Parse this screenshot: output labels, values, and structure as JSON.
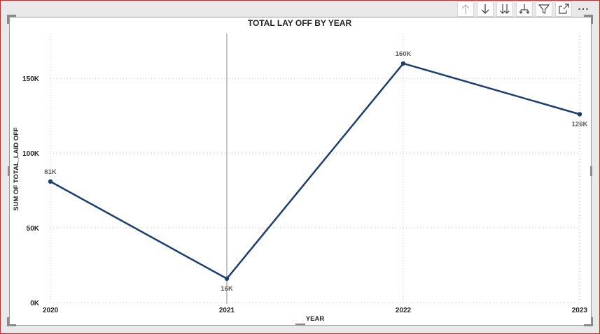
{
  "toolbar": {
    "buttons": [
      {
        "icon": "arrow-up-icon",
        "name": "drill-up-button"
      },
      {
        "icon": "arrow-down-icon",
        "name": "drill-down-button"
      },
      {
        "icon": "double-arrow-down-icon",
        "name": "next-level-button"
      },
      {
        "icon": "expand-hierarchy-icon",
        "name": "expand-hierarchy-button"
      },
      {
        "icon": "filter-icon",
        "name": "filter-button"
      },
      {
        "icon": "focus-mode-icon",
        "name": "focus-mode-button"
      },
      {
        "icon": "more-options-icon",
        "name": "more-options-button"
      }
    ]
  },
  "chart_data": {
    "type": "line",
    "title": "TOTAL LAY OFF BY YEAR",
    "xlabel": "YEAR",
    "ylabel": "SUM OF TOTAL_LAID OFF",
    "categories": [
      "2020",
      "2021",
      "2022",
      "2023"
    ],
    "series": [
      {
        "values": [
          81000,
          16000,
          160000,
          126000
        ],
        "color": "#1b3f6e"
      }
    ],
    "data_labels": [
      "81K",
      "16K",
      "160K",
      "126K"
    ],
    "y_ticks": [
      {
        "value": 0,
        "label": "0K"
      },
      {
        "value": 50000,
        "label": "50K"
      },
      {
        "value": 100000,
        "label": "100K"
      },
      {
        "value": 150000,
        "label": "150K"
      }
    ],
    "ylim": [
      0,
      180000
    ],
    "grid": true,
    "hover_category": "2021",
    "colors": {
      "line": "#1b3f6e",
      "grid": "#c8c8c8",
      "hover_line": "#8a8a8a",
      "border_selected": "#e02020"
    }
  }
}
